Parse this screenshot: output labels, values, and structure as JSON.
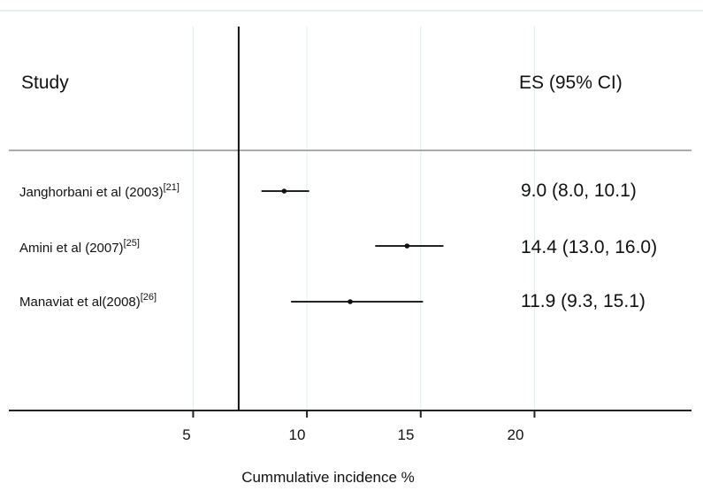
{
  "chart_data": {
    "type": "forest",
    "column_headers": {
      "study": "Study",
      "effect": "ES (95% CI)"
    },
    "rows": [
      {
        "study": "Janghorbani et al (2003)",
        "ref": "[21]",
        "es": 9.0,
        "lo": 8.0,
        "hi": 10.1,
        "label": "9.0 (8.0, 10.1)"
      },
      {
        "study": "Amini et al (2007)",
        "ref": "[25]",
        "es": 14.4,
        "lo": 13.0,
        "hi": 16.0,
        "label": "14.4 (13.0, 16.0)"
      },
      {
        "study": "Manaviat et al(2008)",
        "ref": "[26]",
        "es": 11.9,
        "lo": 9.3,
        "hi": 15.1,
        "label": "11.9 (9.3, 15.1)"
      }
    ],
    "x_ticks": [
      5,
      10,
      15,
      20
    ],
    "xlim": [
      -3.1,
      26.9
    ],
    "reference_line": 7,
    "xlabel": "Cummulative incidence %",
    "grid": "vertical"
  }
}
